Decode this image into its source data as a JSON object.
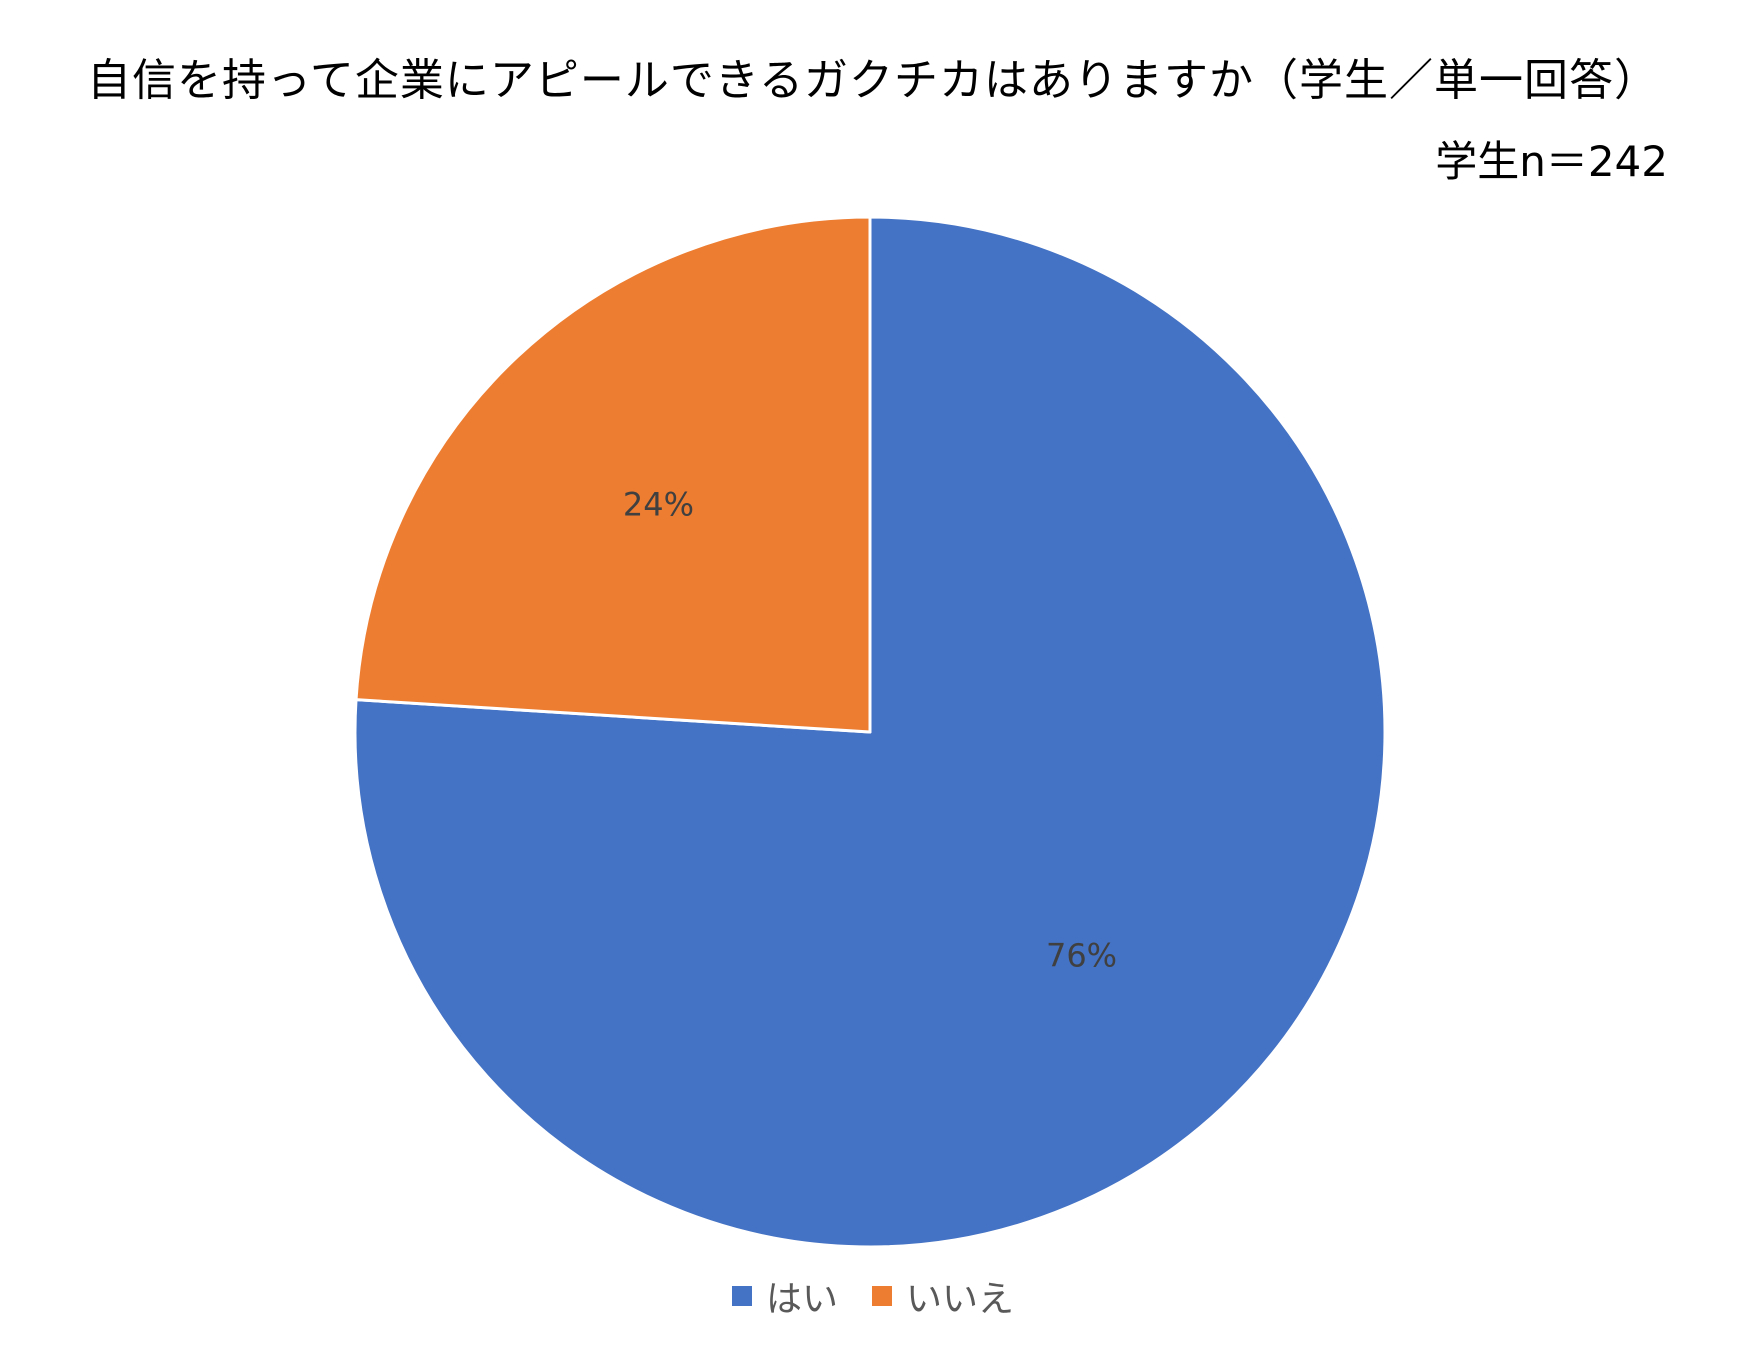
{
  "chart_data": {
    "type": "pie",
    "title": "自信を持って企業にアピールできるガクチカはありますか（学生／単一回答）",
    "subtitle": "学生n＝242",
    "categories": [
      "はい",
      "いいえ"
    ],
    "values": [
      76,
      24
    ],
    "value_labels": [
      "76%",
      "24%"
    ],
    "colors": [
      "#4472C4",
      "#ED7D31"
    ],
    "start_angle_deg": 0,
    "direction": "clockwise",
    "legend": {
      "position": "bottom",
      "entries": [
        "はい",
        "いいえ"
      ]
    }
  }
}
